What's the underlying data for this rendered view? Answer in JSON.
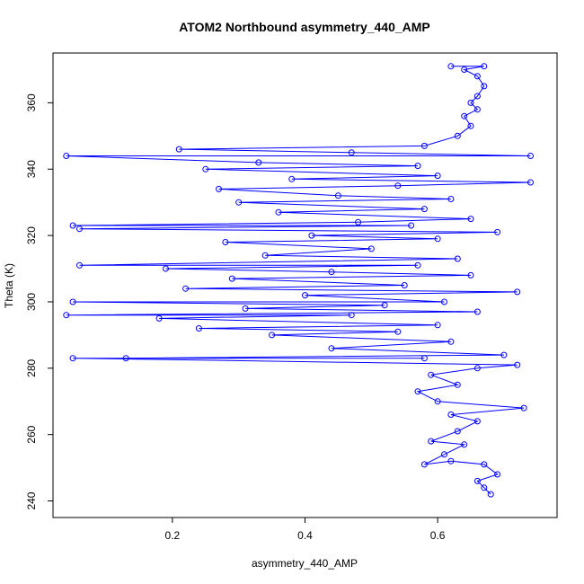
{
  "chart_data": {
    "type": "line",
    "title": "ATOM2 Northbound asymmetry_440_AMP",
    "xlabel": "asymmetry_440_AMP",
    "ylabel": "Theta (K)",
    "xlim": [
      0.02,
      0.78
    ],
    "ylim": [
      235,
      375
    ],
    "x_ticks": [
      0.2,
      0.4,
      0.6
    ],
    "y_ticks": [
      240,
      260,
      280,
      300,
      320,
      340,
      360
    ],
    "grid": false,
    "marker": "open-circle",
    "series": [
      {
        "color": "#0000ff",
        "points": [
          [
            0.67,
            244
          ],
          [
            0.68,
            242
          ],
          [
            0.66,
            246
          ],
          [
            0.69,
            248
          ],
          [
            0.67,
            251
          ],
          [
            0.62,
            252
          ],
          [
            0.58,
            251
          ],
          [
            0.61,
            254
          ],
          [
            0.64,
            257
          ],
          [
            0.59,
            258
          ],
          [
            0.63,
            261
          ],
          [
            0.66,
            264
          ],
          [
            0.62,
            266
          ],
          [
            0.73,
            268
          ],
          [
            0.6,
            270
          ],
          [
            0.57,
            273
          ],
          [
            0.63,
            275
          ],
          [
            0.59,
            278
          ],
          [
            0.66,
            280
          ],
          [
            0.72,
            281
          ],
          [
            0.05,
            283
          ],
          [
            0.58,
            283
          ],
          [
            0.13,
            283
          ],
          [
            0.7,
            284
          ],
          [
            0.44,
            286
          ],
          [
            0.62,
            288
          ],
          [
            0.35,
            290
          ],
          [
            0.54,
            291
          ],
          [
            0.24,
            292
          ],
          [
            0.6,
            293
          ],
          [
            0.18,
            295
          ],
          [
            0.47,
            296
          ],
          [
            0.04,
            296
          ],
          [
            0.66,
            297
          ],
          [
            0.31,
            298
          ],
          [
            0.52,
            299
          ],
          [
            0.05,
            300
          ],
          [
            0.61,
            300
          ],
          [
            0.4,
            302
          ],
          [
            0.72,
            303
          ],
          [
            0.22,
            304
          ],
          [
            0.55,
            305
          ],
          [
            0.29,
            307
          ],
          [
            0.65,
            308
          ],
          [
            0.44,
            309
          ],
          [
            0.19,
            310
          ],
          [
            0.57,
            311
          ],
          [
            0.06,
            311
          ],
          [
            0.63,
            313
          ],
          [
            0.34,
            314
          ],
          [
            0.5,
            316
          ],
          [
            0.28,
            318
          ],
          [
            0.6,
            319
          ],
          [
            0.41,
            320
          ],
          [
            0.69,
            321
          ],
          [
            0.06,
            322
          ],
          [
            0.56,
            323
          ],
          [
            0.05,
            323
          ],
          [
            0.48,
            324
          ],
          [
            0.65,
            325
          ],
          [
            0.36,
            327
          ],
          [
            0.58,
            328
          ],
          [
            0.3,
            330
          ],
          [
            0.62,
            331
          ],
          [
            0.45,
            332
          ],
          [
            0.27,
            334
          ],
          [
            0.54,
            335
          ],
          [
            0.74,
            336
          ],
          [
            0.38,
            337
          ],
          [
            0.6,
            338
          ],
          [
            0.25,
            340
          ],
          [
            0.57,
            341
          ],
          [
            0.33,
            342
          ],
          [
            0.04,
            344
          ],
          [
            0.74,
            344
          ],
          [
            0.47,
            345
          ],
          [
            0.21,
            346
          ],
          [
            0.58,
            347
          ],
          [
            0.63,
            350
          ],
          [
            0.65,
            353
          ],
          [
            0.64,
            356
          ],
          [
            0.66,
            358
          ],
          [
            0.65,
            360
          ],
          [
            0.66,
            362
          ],
          [
            0.67,
            365
          ],
          [
            0.66,
            368
          ],
          [
            0.64,
            370
          ],
          [
            0.67,
            371
          ],
          [
            0.62,
            371
          ]
        ]
      }
    ]
  }
}
